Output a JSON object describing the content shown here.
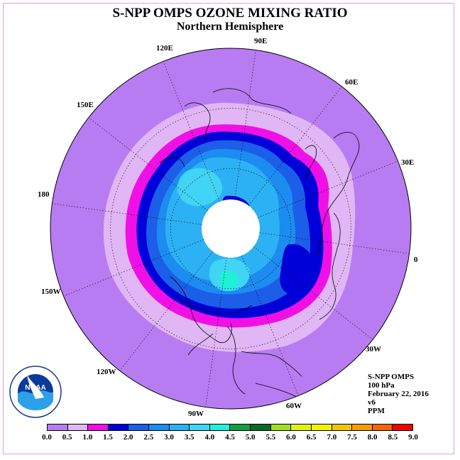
{
  "title": "S-NPP OMPS OZONE MIXING RATIO",
  "subtitle": "Northern Hemisphere",
  "longitude_labels": [
    "90E",
    "60E",
    "30E",
    "0",
    "30W",
    "60W",
    "90W",
    "120W",
    "150W",
    "180",
    "150E",
    "120E"
  ],
  "info": {
    "instrument": "S-NPP OMPS",
    "level": "100 hPa",
    "date": "February 22, 2016",
    "version": "v6",
    "units": "PPM"
  },
  "legend": {
    "ticks": [
      "0.0",
      "0.5",
      "1.0",
      "1.5",
      "2.0",
      "2.5",
      "3.0",
      "3.5",
      "4.0",
      "4.5",
      "5.0",
      "5.5",
      "6.0",
      "6.5",
      "7.0",
      "7.5",
      "8.0",
      "8.5",
      "9.0"
    ],
    "colors": [
      "#b87cf2",
      "#e0b6f5",
      "#f010e6",
      "#0000d8",
      "#1c5ee8",
      "#1c8cf0",
      "#2cb2f4",
      "#42d4f4",
      "#20f0d8",
      "#10a040",
      "#0a6a28",
      "#a0e020",
      "#e0f010",
      "#f4f400",
      "#f4c400",
      "#f49c00",
      "#f46400",
      "#f00000",
      "#8a5530"
    ]
  },
  "logo_text": "NOAA",
  "map_colors": {
    "outer": "#b87cf2",
    "ring_light": "#e0b6f5",
    "magenta": "#f010e6",
    "dark_blue": "#0000d8",
    "blue": "#1c5ee8",
    "mid_blue": "#1c8cf0",
    "light_blue": "#2cb2f4",
    "cyan": "#42d4f4",
    "teal": "#20f0d8"
  }
}
